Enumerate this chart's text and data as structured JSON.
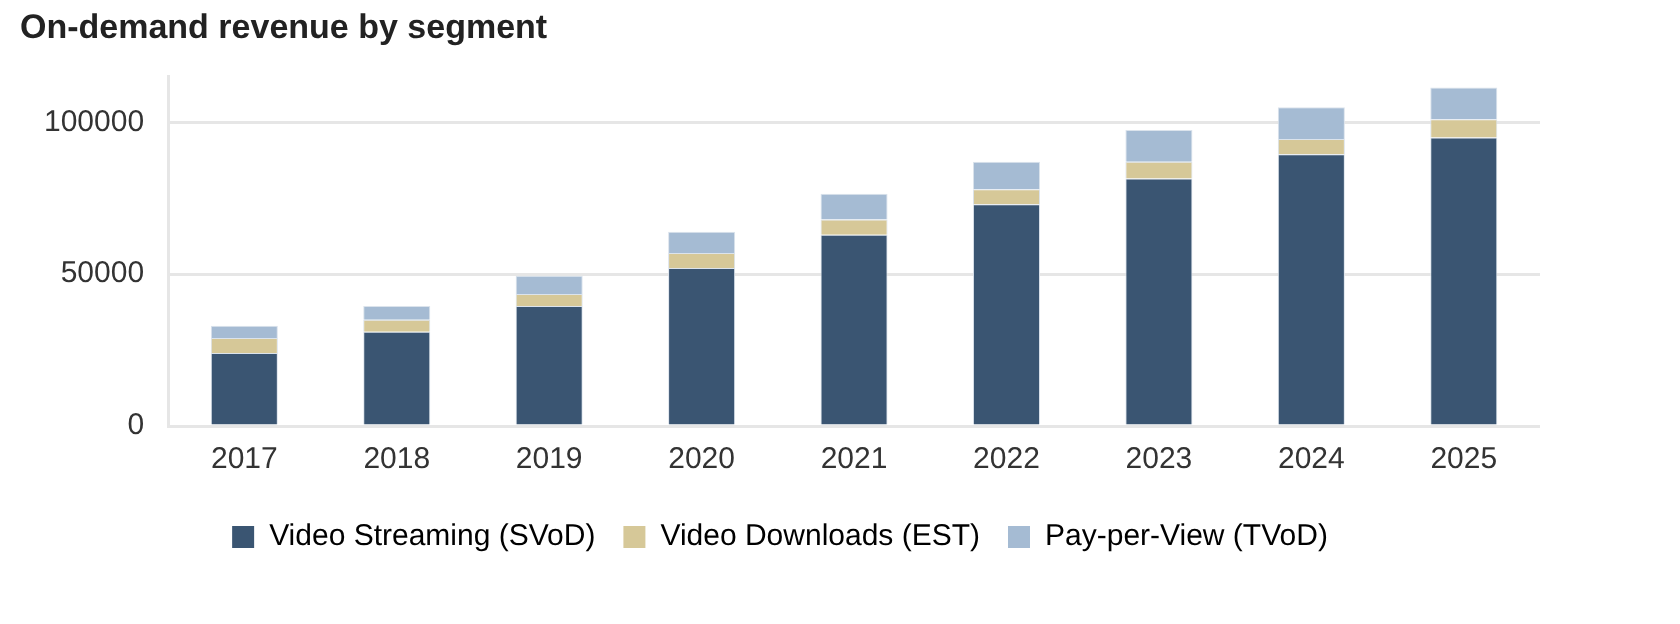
{
  "chart_data": {
    "type": "bar",
    "title": "On-demand revenue by segment",
    "categories": [
      "2017",
      "2018",
      "2019",
      "2020",
      "2021",
      "2022",
      "2023",
      "2024",
      "2025"
    ],
    "series": [
      {
        "name": "Video Streaming (SVoD)",
        "color": "#3a5572",
        "values": [
          24000,
          31000,
          39500,
          52000,
          63000,
          73000,
          81500,
          89500,
          95000
        ]
      },
      {
        "name": "Video Downloads (EST)",
        "color": "#d6c898",
        "values": [
          5000,
          4000,
          4000,
          5000,
          5000,
          5000,
          5500,
          5000,
          6000
        ]
      },
      {
        "name": "Pay-per-View (TVoD)",
        "color": "#a5bbd3",
        "values": [
          4000,
          4500,
          6000,
          7000,
          8500,
          9000,
          10500,
          10500,
          10500
        ]
      }
    ],
    "stacked": true,
    "ylim": [
      0,
      115000
    ],
    "yticks": [
      0,
      50000,
      100000
    ],
    "grid": "y",
    "legend": "bottom"
  }
}
